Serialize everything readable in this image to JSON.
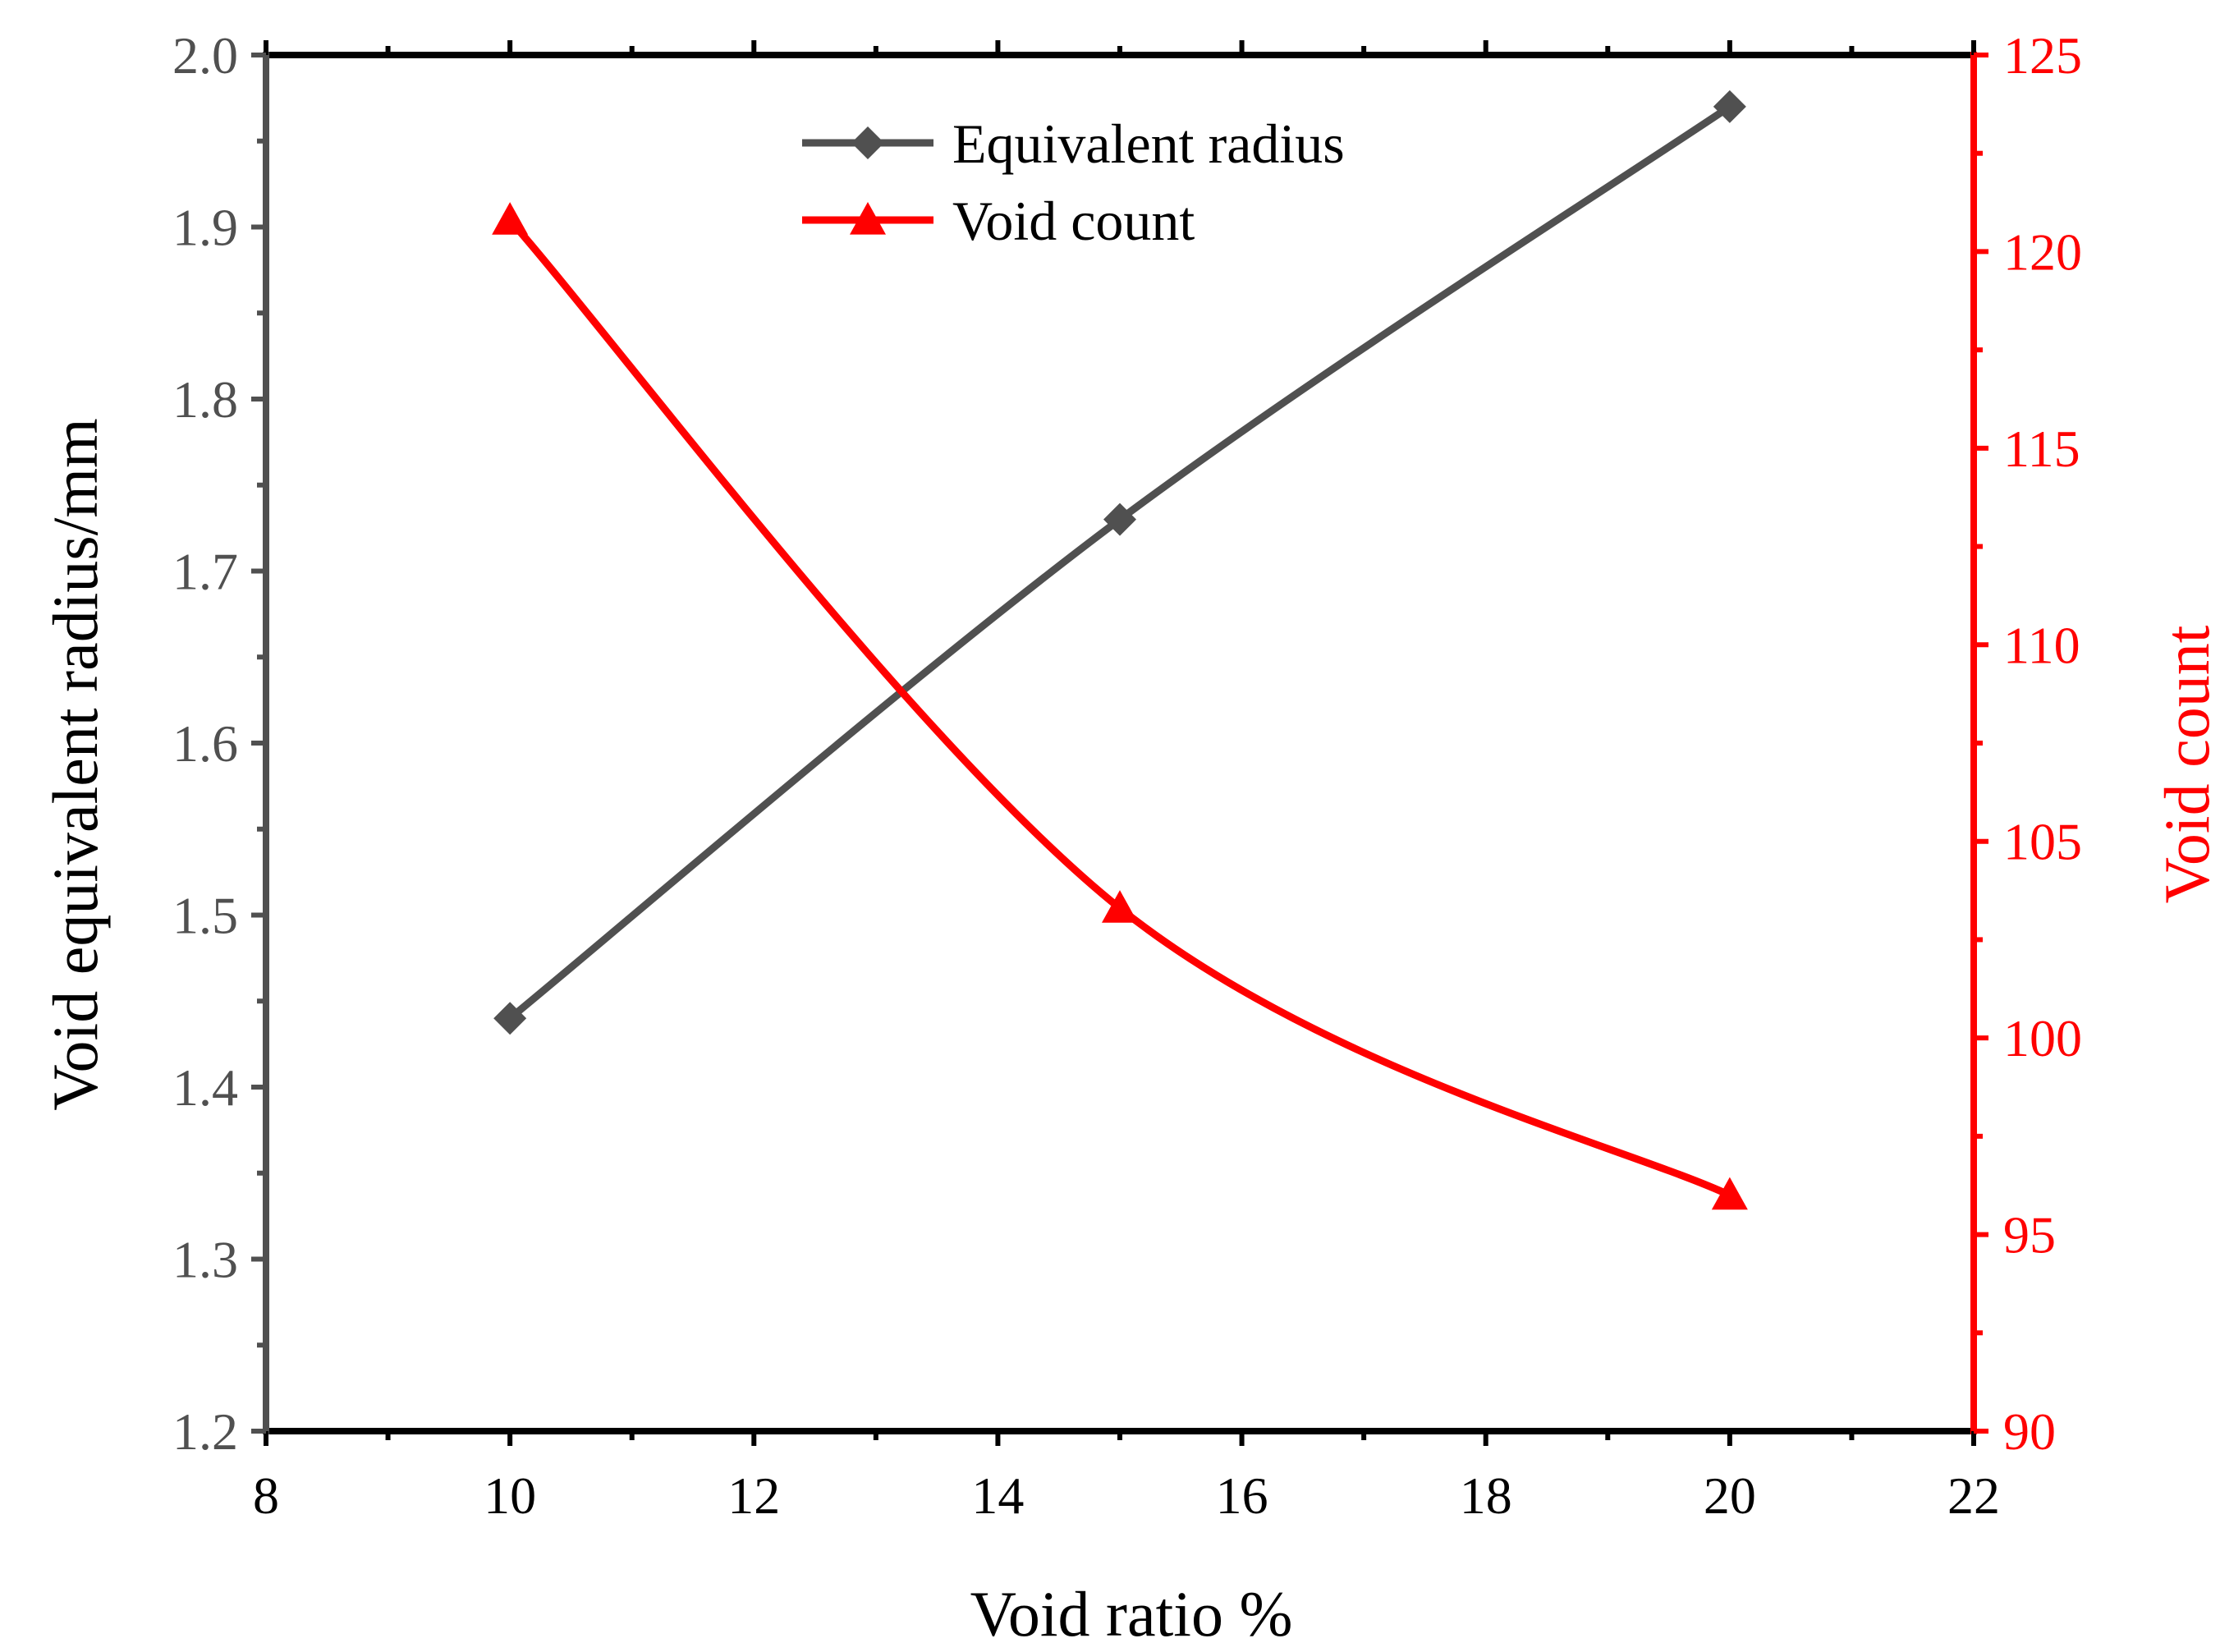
{
  "chart_data": {
    "type": "line",
    "title": "",
    "xlabel": "Void ratio %",
    "ylabel_left": "Void equivalent radius/mm",
    "ylabel_right": "Void count",
    "xlim": [
      8,
      22
    ],
    "ylim_left": [
      1.2,
      2.0
    ],
    "ylim_right": [
      90,
      125
    ],
    "x_ticks": [
      "8",
      "10",
      "12",
      "14",
      "16",
      "18",
      "20",
      "22"
    ],
    "y_left_ticks": [
      "1.2",
      "1.3",
      "1.4",
      "1.5",
      "1.6",
      "1.7",
      "1.8",
      "1.9",
      "2.0"
    ],
    "y_right_ticks": [
      "90",
      "95",
      "100",
      "105",
      "110",
      "115",
      "120",
      "125"
    ],
    "grid": false,
    "legend_position": "top-center",
    "series": [
      {
        "name": "Equivalent radius",
        "axis": "left",
        "marker": "diamond",
        "color": "#505050",
        "x": [
          10,
          15,
          20
        ],
        "values": [
          1.44,
          1.73,
          1.97
        ]
      },
      {
        "name": "Void count",
        "axis": "right",
        "marker": "triangle",
        "color": "#ff0000",
        "x": [
          10,
          15,
          20
        ],
        "values": [
          120.8,
          103.3,
          96.0
        ]
      }
    ],
    "colors": {
      "left_axis": "#505050",
      "right_axis": "#ff0000",
      "frame": "#000000"
    }
  }
}
